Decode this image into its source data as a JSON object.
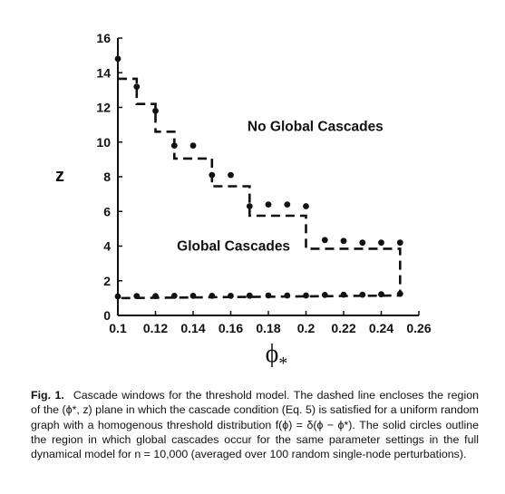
{
  "chart_data": {
    "type": "scatter",
    "xlim": [
      0.1,
      0.26
    ],
    "ylim": [
      0,
      16
    ],
    "x_ticks": [
      "0.1",
      "0.12",
      "0.14",
      "0.16",
      "0.18",
      "0.2",
      "0.22",
      "0.24",
      "0.26"
    ],
    "y_ticks": [
      "0",
      "2",
      "4",
      "6",
      "8",
      "10",
      "12",
      "14",
      "16"
    ],
    "ylabel": "z",
    "xlabel": "ϕ",
    "xlabel_subscript": "*",
    "grid": false,
    "annotations": [
      {
        "text": "No Global Cascades",
        "x": 0.205,
        "y": 10.9
      },
      {
        "text": "Global Cascades",
        "x": 0.1615,
        "y": 4.0
      }
    ],
    "series": [
      {
        "style": "dashed",
        "points": [
          [
            0.1,
            13.65
          ],
          [
            0.11,
            13.65
          ],
          [
            0.11,
            12.2
          ],
          [
            0.12,
            12.2
          ],
          [
            0.12,
            10.6
          ],
          [
            0.13,
            10.6
          ],
          [
            0.13,
            9.05
          ],
          [
            0.15,
            9.05
          ],
          [
            0.15,
            7.45
          ],
          [
            0.17,
            7.45
          ],
          [
            0.17,
            5.75
          ],
          [
            0.2,
            5.75
          ],
          [
            0.2,
            3.85
          ],
          [
            0.25,
            3.85
          ],
          [
            0.25,
            1.15
          ],
          [
            0.1,
            1.0
          ]
        ]
      },
      {
        "style": "filled-circles",
        "points": [
          [
            0.1,
            14.8
          ],
          [
            0.11,
            13.2
          ],
          [
            0.12,
            11.8
          ],
          [
            0.13,
            9.8
          ],
          [
            0.14,
            9.8
          ],
          [
            0.15,
            8.1
          ],
          [
            0.16,
            8.1
          ],
          [
            0.17,
            6.3
          ],
          [
            0.18,
            6.4
          ],
          [
            0.19,
            6.4
          ],
          [
            0.2,
            6.3
          ],
          [
            0.21,
            4.35
          ],
          [
            0.22,
            4.3
          ],
          [
            0.23,
            4.2
          ],
          [
            0.24,
            4.2
          ],
          [
            0.25,
            4.2
          ],
          [
            0.1,
            1.1
          ],
          [
            0.11,
            1.12
          ],
          [
            0.12,
            1.12
          ],
          [
            0.13,
            1.13
          ],
          [
            0.14,
            1.13
          ],
          [
            0.15,
            1.13
          ],
          [
            0.16,
            1.13
          ],
          [
            0.17,
            1.14
          ],
          [
            0.18,
            1.15
          ],
          [
            0.19,
            1.15
          ],
          [
            0.2,
            1.15
          ],
          [
            0.21,
            1.18
          ],
          [
            0.22,
            1.2
          ],
          [
            0.23,
            1.2
          ],
          [
            0.24,
            1.22
          ],
          [
            0.25,
            1.25
          ]
        ]
      }
    ]
  },
  "caption": {
    "figure_label": "Fig. 1.",
    "text": "Cascade windows for the threshold model. The dashed line encloses the region of the (ϕ*, z) plane in which the cascade condition (Eq. 5) is satisfied for a uniform random graph with a homogenous threshold distribution f(ϕ) = δ(ϕ − ϕ*). The solid circles outline the region in which global cascades occur for the same parameter settings in the full dynamical model for n = 10,000 (averaged over 100 random single-node perturbations)."
  }
}
